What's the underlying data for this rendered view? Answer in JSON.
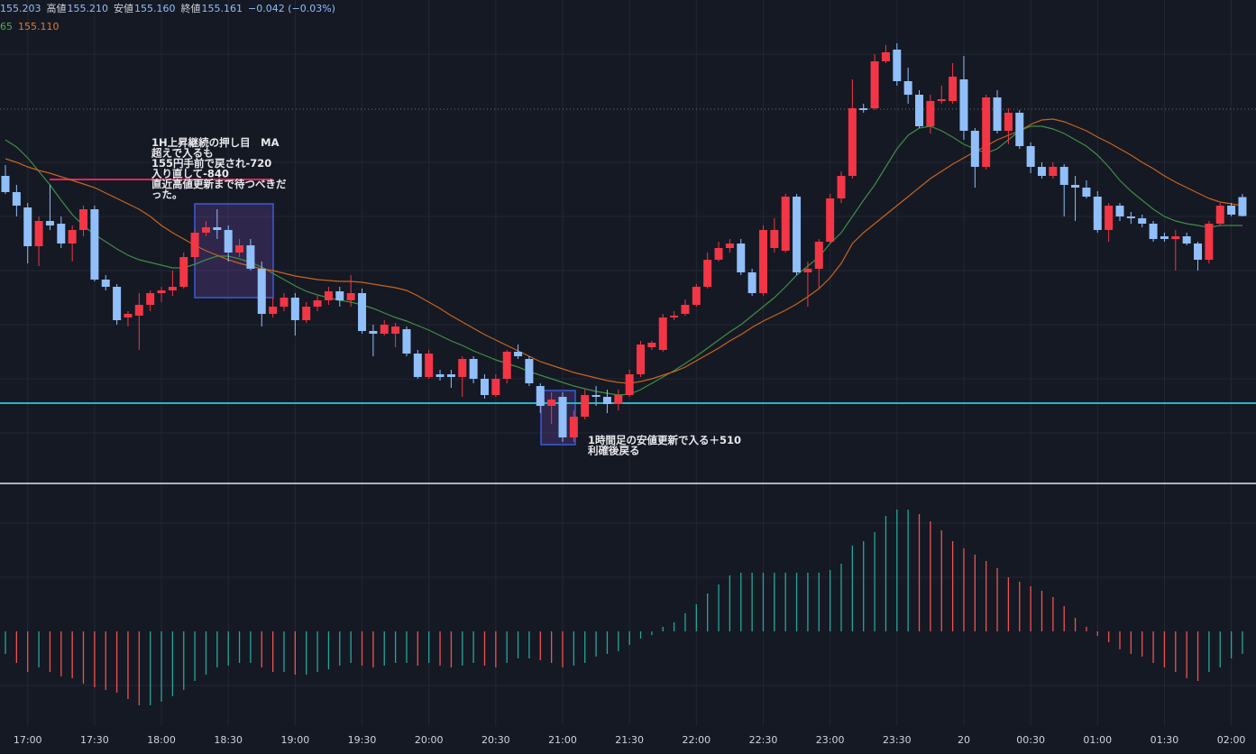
{
  "header": {
    "items": [
      {
        "value": "155.203"
      },
      {
        "label": "高値",
        "value": "155.210"
      },
      {
        "label": "安値",
        "value": "155.160"
      },
      {
        "label": "終値",
        "value": "155.161"
      }
    ],
    "change": "−0.042 (−0.03%)",
    "ma_items": [
      {
        "value": "65",
        "color": "#4caf50"
      },
      {
        "value": "155.110",
        "color": "#e07a2e"
      }
    ]
  },
  "chart_data": [
    {
      "type": "candlestick",
      "up_color": "#f23645",
      "down_color": "#90bff9",
      "ylim": [
        154.57,
        155.64
      ],
      "categories": [
        null,
        null,
        "17:00",
        null,
        null,
        null,
        null,
        null,
        "17:30",
        null,
        null,
        null,
        null,
        null,
        "18:00",
        null,
        null,
        null,
        null,
        null,
        "18:30",
        null,
        null,
        null,
        null,
        null,
        "19:00",
        null,
        null,
        null,
        null,
        null,
        "19:30",
        null,
        null,
        null,
        null,
        null,
        "20:00",
        null,
        null,
        null,
        null,
        null,
        "20:30",
        null,
        null,
        null,
        null,
        null,
        "21:00",
        null,
        null,
        null,
        null,
        null,
        "21:30",
        null,
        null,
        null,
        null,
        null,
        "22:00",
        null,
        null,
        null,
        null,
        null,
        "22:30",
        null,
        null,
        null,
        null,
        null,
        "23:00",
        null,
        null,
        null,
        null,
        null,
        "23:30",
        null,
        null,
        null,
        null,
        null,
        "20",
        null,
        null,
        null,
        null,
        null,
        "00:30",
        null,
        null,
        null,
        null,
        null,
        "01:00",
        null,
        null,
        null,
        null,
        null,
        "01:30",
        null,
        null,
        null,
        null,
        null,
        "02:00",
        null
      ],
      "open": [
        155.25,
        155.214,
        155.18,
        155.094,
        155.15,
        155.144,
        155.1,
        155.13,
        155.176,
        155.02,
        155.004,
        154.936,
        154.94,
        154.964,
        154.99,
        154.996,
        155.004,
        155.07,
        155.124,
        155.136,
        155.13,
        155.08,
        155.096,
        155.044,
        154.944,
        154.96,
        154.98,
        154.93,
        154.96,
        154.974,
        154.994,
        154.974,
        154.99,
        154.906,
        154.9,
        154.9,
        154.91,
        154.856,
        154.804,
        154.81,
        154.81,
        154.804,
        154.844,
        154.8,
        154.764,
        154.8,
        154.86,
        154.844,
        154.784,
        154.74,
        154.76,
        154.67,
        154.716,
        154.764,
        154.76,
        154.744,
        154.764,
        154.81,
        154.87,
        154.864,
        154.936,
        154.944,
        154.964,
        155.004,
        155.064,
        155.09,
        155.1,
        155.036,
        154.99,
        155.09,
        155.084,
        155.204,
        155.036,
        155.044,
        155.104,
        155.2,
        155.25,
        155.4,
        155.4,
        155.504,
        155.53,
        155.46,
        155.43,
        155.36,
        155.416,
        155.416,
        155.464,
        155.35,
        155.27,
        155.424,
        155.35,
        155.39,
        155.316,
        155.27,
        155.25,
        155.27,
        155.23,
        155.224,
        155.204,
        155.13,
        155.184,
        155.16,
        155.156,
        155.144,
        155.116,
        155.11,
        155.116,
        155.1,
        155.064,
        155.144,
        155.184,
        155.203
      ],
      "high": [
        155.274,
        155.23,
        155.19,
        155.16,
        155.23,
        155.16,
        155.14,
        155.184,
        155.184,
        155.03,
        155.01,
        154.95,
        154.99,
        154.996,
        155.004,
        155.04,
        155.08,
        155.13,
        155.15,
        155.176,
        155.14,
        155.11,
        155.11,
        155.06,
        154.98,
        154.99,
        154.99,
        154.97,
        154.984,
        155.004,
        155.004,
        155.03,
        155.0,
        154.92,
        154.93,
        154.924,
        154.916,
        154.864,
        154.864,
        154.82,
        154.82,
        154.85,
        154.85,
        154.81,
        154.81,
        154.864,
        154.876,
        154.85,
        154.79,
        154.77,
        154.77,
        154.73,
        154.776,
        154.784,
        154.776,
        154.776,
        154.82,
        154.884,
        154.884,
        154.944,
        154.95,
        154.976,
        155.01,
        155.08,
        155.104,
        155.11,
        155.11,
        155.044,
        155.14,
        155.156,
        155.21,
        155.21,
        155.06,
        155.11,
        155.21,
        155.26,
        155.464,
        155.41,
        155.52,
        155.54,
        155.544,
        155.49,
        155.44,
        155.43,
        155.45,
        155.5,
        155.516,
        155.356,
        155.43,
        155.44,
        155.4,
        155.396,
        155.324,
        155.28,
        155.28,
        155.276,
        155.25,
        155.24,
        155.216,
        155.19,
        155.19,
        155.17,
        155.164,
        155.15,
        155.124,
        155.13,
        155.124,
        155.104,
        155.15,
        155.19,
        155.19,
        155.21
      ],
      "low": [
        155.21,
        155.16,
        155.056,
        155.05,
        155.13,
        155.09,
        155.06,
        155.116,
        155.016,
        154.996,
        154.92,
        154.916,
        154.864,
        154.95,
        154.97,
        154.984,
        155.0,
        155.06,
        155.116,
        155.11,
        155.06,
        155.07,
        155.04,
        154.916,
        154.936,
        154.95,
        154.896,
        154.924,
        154.95,
        154.964,
        154.96,
        154.96,
        154.9,
        154.85,
        154.896,
        154.87,
        154.85,
        154.8,
        154.8,
        154.796,
        154.78,
        154.76,
        154.79,
        154.756,
        154.76,
        154.79,
        154.844,
        154.784,
        154.724,
        154.7,
        154.66,
        154.66,
        154.71,
        154.74,
        154.724,
        154.73,
        154.76,
        154.804,
        154.864,
        154.86,
        154.93,
        154.94,
        154.96,
        155.0,
        155.06,
        155.08,
        155.03,
        154.984,
        154.984,
        155.08,
        155.08,
        155.03,
        154.96,
        155.0,
        155.1,
        155.19,
        155.244,
        155.39,
        155.396,
        155.5,
        155.45,
        155.41,
        155.356,
        155.344,
        155.41,
        155.41,
        155.33,
        155.224,
        155.264,
        155.344,
        155.32,
        155.31,
        155.256,
        155.244,
        155.244,
        155.16,
        155.15,
        155.2,
        155.124,
        155.104,
        155.15,
        155.144,
        155.136,
        155.104,
        155.104,
        155.04,
        155.096,
        155.04,
        155.056,
        155.14,
        155.16,
        155.16
      ],
      "close": [
        155.214,
        155.184,
        155.094,
        155.15,
        155.14,
        155.1,
        155.13,
        155.176,
        155.02,
        155.004,
        154.93,
        154.944,
        154.964,
        154.99,
        154.996,
        155.004,
        155.07,
        155.124,
        155.136,
        155.13,
        155.08,
        155.096,
        155.044,
        154.944,
        154.96,
        154.98,
        154.93,
        154.96,
        154.974,
        154.994,
        154.974,
        154.99,
        154.906,
        154.9,
        154.92,
        154.916,
        154.856,
        154.804,
        154.856,
        154.804,
        154.804,
        154.844,
        154.8,
        154.764,
        154.8,
        154.86,
        154.85,
        154.79,
        154.74,
        154.754,
        154.67,
        154.716,
        154.764,
        154.76,
        154.744,
        154.764,
        154.81,
        154.876,
        154.88,
        154.936,
        154.94,
        154.964,
        155.004,
        155.064,
        155.09,
        155.1,
        155.036,
        154.99,
        155.13,
        155.13,
        155.204,
        155.036,
        155.044,
        155.104,
        155.2,
        155.25,
        155.4,
        155.396,
        155.504,
        155.524,
        155.46,
        155.43,
        155.36,
        155.416,
        155.42,
        155.47,
        155.35,
        155.27,
        155.424,
        155.35,
        155.39,
        155.316,
        155.27,
        155.25,
        155.27,
        155.23,
        155.224,
        155.204,
        155.13,
        155.184,
        155.16,
        155.156,
        155.144,
        155.11,
        155.11,
        155.116,
        155.1,
        155.064,
        155.144,
        155.184,
        155.164,
        155.161
      ],
      "overlays": [
        {
          "color": "#3f8f43",
          "values": [
            155.33,
            155.314,
            155.29,
            155.26,
            155.23,
            155.196,
            155.164,
            155.14,
            155.12,
            155.104,
            155.088,
            155.074,
            155.064,
            155.058,
            155.052,
            155.046,
            155.046,
            155.054,
            155.064,
            155.072,
            155.072,
            155.066,
            155.058,
            155.048,
            155.034,
            155.02,
            155.006,
            154.994,
            154.986,
            154.98,
            154.974,
            154.97,
            154.964,
            154.956,
            154.946,
            154.936,
            154.928,
            154.918,
            154.908,
            154.896,
            154.884,
            154.874,
            154.862,
            154.852,
            154.842,
            154.834,
            154.826,
            154.816,
            154.808,
            154.8,
            154.792,
            154.784,
            154.778,
            154.772,
            154.768,
            154.764,
            154.766,
            154.776,
            154.79,
            154.804,
            154.818,
            154.834,
            154.85,
            154.868,
            154.886,
            154.904,
            154.92,
            154.94,
            154.96,
            154.98,
            155.004,
            155.03,
            155.05,
            155.07,
            155.1,
            155.124,
            155.16,
            155.196,
            155.23,
            155.27,
            155.31,
            155.34,
            155.356,
            155.36,
            155.35,
            155.336,
            155.32,
            155.31,
            155.3,
            155.31,
            155.33,
            155.35,
            155.36,
            155.36,
            155.354,
            155.344,
            155.33,
            155.316,
            155.296,
            155.27,
            155.24,
            155.216,
            155.196,
            155.176,
            155.16,
            155.15,
            155.144,
            155.14,
            155.136,
            155.14,
            155.14,
            155.14
          ]
        },
        {
          "color": "#c8641e",
          "values": [
            155.288,
            155.28,
            155.27,
            155.262,
            155.256,
            155.248,
            155.24,
            155.232,
            155.224,
            155.212,
            155.2,
            155.188,
            155.176,
            155.16,
            155.14,
            155.124,
            155.11,
            155.096,
            155.084,
            155.074,
            155.064,
            155.056,
            155.05,
            155.044,
            155.04,
            155.034,
            155.028,
            155.024,
            155.02,
            155.018,
            155.016,
            155.016,
            155.014,
            155.01,
            155.006,
            155.002,
            154.996,
            154.984,
            154.97,
            154.956,
            154.94,
            154.926,
            154.912,
            154.898,
            154.886,
            154.874,
            154.862,
            154.85,
            154.838,
            154.83,
            154.822,
            154.814,
            154.808,
            154.802,
            154.796,
            154.792,
            154.79,
            154.794,
            154.8,
            154.808,
            154.816,
            154.826,
            154.84,
            154.854,
            154.868,
            154.884,
            154.898,
            154.914,
            154.928,
            154.94,
            154.952,
            154.966,
            154.982,
            155.0,
            155.024,
            155.056,
            155.1,
            155.124,
            155.144,
            155.164,
            155.184,
            155.204,
            155.224,
            155.244,
            155.26,
            155.276,
            155.29,
            155.304,
            155.316,
            155.33,
            155.34,
            155.35,
            155.364,
            155.374,
            155.376,
            155.37,
            155.36,
            155.35,
            155.336,
            155.324,
            155.31,
            155.296,
            155.28,
            155.266,
            155.25,
            155.236,
            155.224,
            155.212,
            155.2,
            155.192,
            155.188,
            155.184
          ]
        }
      ],
      "annotations": [
        {
          "lines": [
            "1H上昇継続の押し目　MA",
            "超えで入るも",
            "155円手前で戻され-720",
            "入り直して-840",
            "直近高値更新まで待つべきだ",
            "った。"
          ]
        },
        {
          "lines": [
            "1時間足の安値更新で入る＋510",
            "利確後戻る"
          ]
        }
      ]
    },
    {
      "type": "histogram",
      "rise_color": "#26a69a",
      "fall_color": "#ef5350",
      "ylim": [
        -0.105,
        0.163
      ],
      "values": [
        -0.025,
        -0.035,
        -0.045,
        -0.04,
        -0.045,
        -0.05,
        -0.052,
        -0.058,
        -0.062,
        -0.065,
        -0.068,
        -0.075,
        -0.082,
        -0.082,
        -0.078,
        -0.072,
        -0.065,
        -0.055,
        -0.048,
        -0.04,
        -0.038,
        -0.035,
        -0.035,
        -0.04,
        -0.045,
        -0.045,
        -0.048,
        -0.048,
        -0.045,
        -0.042,
        -0.038,
        -0.035,
        -0.038,
        -0.04,
        -0.038,
        -0.035,
        -0.035,
        -0.038,
        -0.035,
        -0.038,
        -0.04,
        -0.038,
        -0.035,
        -0.038,
        -0.04,
        -0.035,
        -0.03,
        -0.03,
        -0.032,
        -0.035,
        -0.04,
        -0.038,
        -0.035,
        -0.028,
        -0.025,
        -0.022,
        -0.015,
        -0.008,
        -0.004,
        0.005,
        0.01,
        0.02,
        0.03,
        0.042,
        0.052,
        0.062,
        0.065,
        0.065,
        0.065,
        0.065,
        0.065,
        0.065,
        0.065,
        0.065,
        0.068,
        0.075,
        0.095,
        0.1,
        0.11,
        0.128,
        0.135,
        0.135,
        0.13,
        0.122,
        0.112,
        0.1,
        0.092,
        0.085,
        0.078,
        0.07,
        0.06,
        0.055,
        0.05,
        0.045,
        0.038,
        0.028,
        0.015,
        0.005,
        -0.005,
        -0.012,
        -0.02,
        -0.025,
        -0.028,
        -0.035,
        -0.04,
        -0.045,
        -0.052,
        -0.055,
        -0.045,
        -0.04,
        -0.03,
        -0.025
      ]
    }
  ]
}
